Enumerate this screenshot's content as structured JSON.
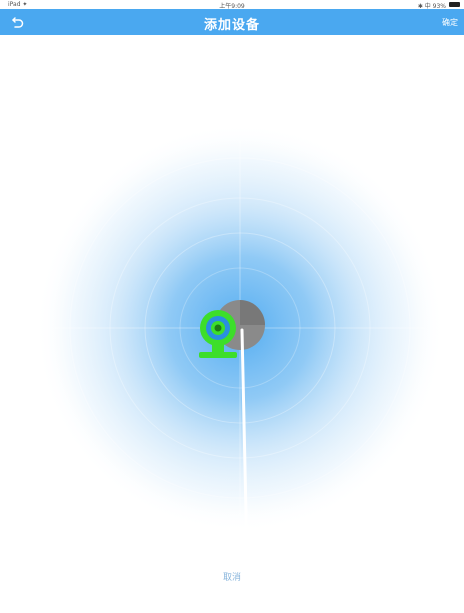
{
  "status_bar": {
    "device": "iPad ✦",
    "time": "上午9:09",
    "battery_text": "✱ 中 93% "
  },
  "nav": {
    "back_icon": "back-arrow-icon",
    "title": "添加设备",
    "right_label": "确定"
  },
  "radar": {
    "device_icon": "webcam-icon",
    "device_color": "#3dde2a",
    "ring_color": "#4aa8f0"
  },
  "footer": {
    "cancel_label": "取消"
  },
  "colors": {
    "nav_background": "#4aa8f0",
    "sweep": "#8a8a8a"
  }
}
